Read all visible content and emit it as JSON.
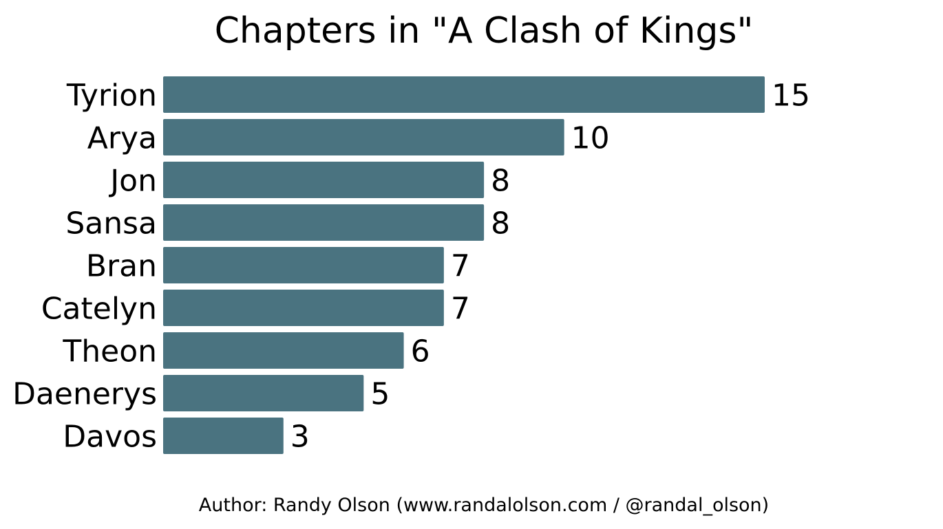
{
  "chart_data": {
    "type": "bar",
    "orientation": "horizontal",
    "title": "Chapters in \"A Clash of Kings\"",
    "categories": [
      "Tyrion",
      "Arya",
      "Jon",
      "Sansa",
      "Bran",
      "Catelyn",
      "Theon",
      "Daenerys",
      "Davos"
    ],
    "values": [
      15,
      10,
      8,
      8,
      7,
      7,
      6,
      5,
      3
    ],
    "xlabel": "",
    "ylabel": "",
    "xlim": [
      0,
      15
    ],
    "grid": false,
    "data_labels": true,
    "bar_color": "#4a7380"
  },
  "credit": "Author: Randy Olson (www.randalolson.com / @randal_olson)"
}
